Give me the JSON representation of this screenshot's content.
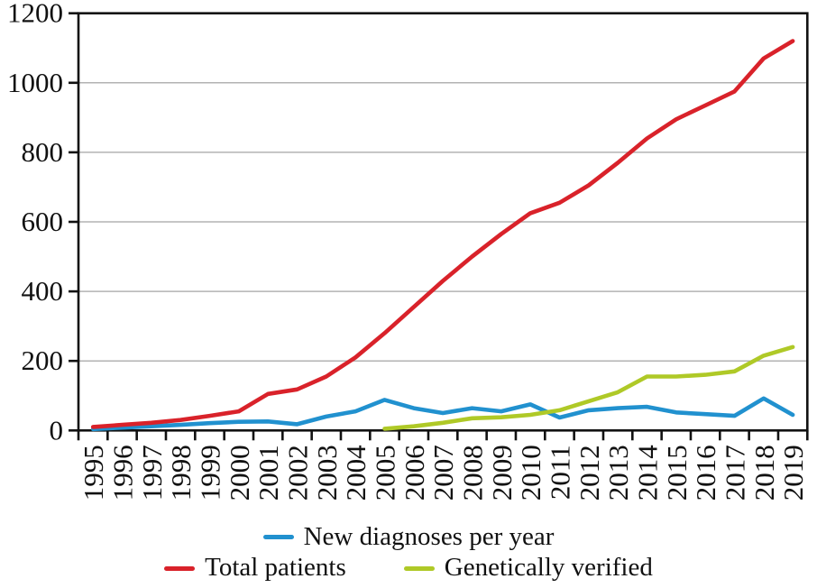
{
  "chart_data": {
    "type": "line",
    "x": [
      1995,
      1996,
      1997,
      1998,
      1999,
      2000,
      2001,
      2002,
      2003,
      2004,
      2005,
      2006,
      2007,
      2008,
      2009,
      2010,
      2011,
      2012,
      2013,
      2014,
      2015,
      2016,
      2017,
      2018,
      2019
    ],
    "series": [
      {
        "name": "New diagnoses per year",
        "color": "#2191cf",
        "values": [
          4,
          8,
          12,
          16,
          21,
          25,
          26,
          18,
          40,
          55,
          88,
          64,
          50,
          64,
          55,
          75,
          37,
          58,
          64,
          68,
          52,
          47,
          42,
          92,
          45
        ]
      },
      {
        "name": "Total patients",
        "color": "#d9222a",
        "values": [
          10,
          16,
          22,
          30,
          42,
          55,
          105,
          118,
          155,
          210,
          280,
          355,
          430,
          500,
          565,
          625,
          655,
          705,
          770,
          840,
          895,
          935,
          975,
          1070,
          1120
        ]
      },
      {
        "name": "Genetically verified",
        "color": "#afc927",
        "values": [
          null,
          null,
          null,
          null,
          null,
          null,
          null,
          null,
          null,
          null,
          5,
          12,
          22,
          35,
          38,
          45,
          58,
          84,
          110,
          155,
          155,
          160,
          170,
          215,
          240
        ]
      }
    ],
    "title": "",
    "xlabel": "",
    "ylabel": "",
    "ylim": [
      0,
      1200
    ],
    "yticks": [
      0,
      200,
      400,
      600,
      800,
      1000,
      1200
    ],
    "grid": "horizontal",
    "legend_position": "bottom",
    "colors": {
      "axis": "#111111",
      "gridline": "#b3b3b3",
      "tick_label": "#111111"
    }
  }
}
